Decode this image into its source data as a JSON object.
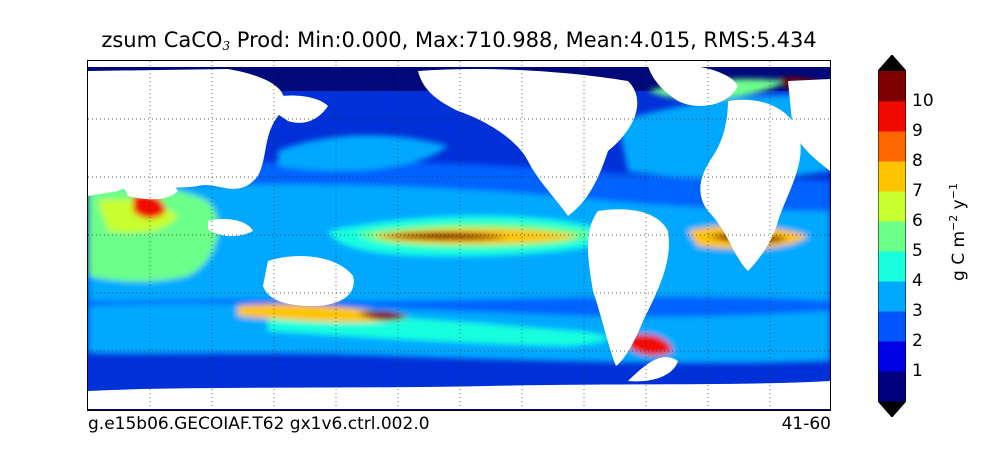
{
  "title": {
    "prefix": "zsum CaCO",
    "subscript": "3",
    "suffix": " Prod: Min:0.000, Max:710.988, Mean:4.015, RMS:5.434"
  },
  "caption": {
    "left": "g.e15b06.GECOIAF.T62 gx1v6.ctrl.002.0",
    "right": "41-60"
  },
  "colorbar": {
    "label_main": "g C m",
    "label_exp1": "−2",
    "label_mid": " y",
    "label_exp2": "−1",
    "ticks": [
      "1",
      "2",
      "3",
      "4",
      "5",
      "6",
      "7",
      "8",
      "9",
      "10"
    ],
    "colors": [
      "#00007f",
      "#0000e6",
      "#0055ff",
      "#00a9ff",
      "#19ffde",
      "#6cff8a",
      "#c8ff2e",
      "#ffc400",
      "#ff6600",
      "#f00a00",
      "#7f0000"
    ]
  }
}
